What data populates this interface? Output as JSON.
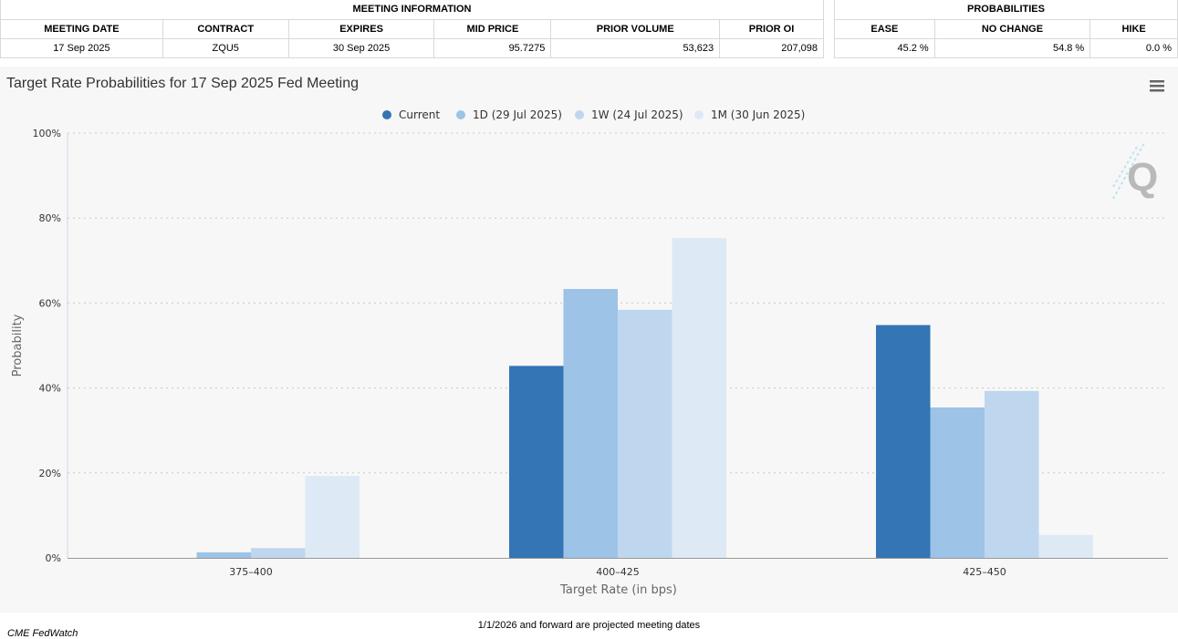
{
  "meeting_info": {
    "header": "MEETING INFORMATION",
    "columns": [
      "MEETING DATE",
      "CONTRACT",
      "EXPIRES",
      "MID PRICE",
      "PRIOR VOLUME",
      "PRIOR OI"
    ],
    "row": [
      "17 Sep 2025",
      "ZQU5",
      "30 Sep 2025",
      "95.7275",
      "53,623",
      "207,098"
    ]
  },
  "probabilities": {
    "header": "PROBABILITIES",
    "columns": [
      "EASE",
      "NO CHANGE",
      "HIKE"
    ],
    "row": [
      "45.2 %",
      "54.8 %",
      "0.0 %"
    ]
  },
  "menu_icon": "hamburger-menu-icon",
  "watermark": "Q",
  "footer": {
    "note": "1/1/2026 and forward are projected meeting dates",
    "source": "CME FedWatch"
  },
  "chart_data": {
    "type": "bar",
    "title": "Target Rate Probabilities for 17 Sep 2025 Fed Meeting",
    "xlabel": "Target Rate (in bps)",
    "ylabel": "Probability",
    "categories": [
      "375-400",
      "400-425",
      "425-450"
    ],
    "ylim": [
      0,
      100
    ],
    "yticks": [
      "0%",
      "20%",
      "40%",
      "60%",
      "80%",
      "100%"
    ],
    "grid": true,
    "legend_position": "top-center",
    "series": [
      {
        "name": "Current",
        "color": "#3375b5",
        "values": [
          0.0,
          45.2,
          54.8
        ]
      },
      {
        "name": "1D (29 Jul 2025)",
        "color": "#9dc3e6",
        "values": [
          1.3,
          63.3,
          35.4
        ]
      },
      {
        "name": "1W (24 Jul 2025)",
        "color": "#bfd7ee",
        "values": [
          2.3,
          58.4,
          39.3
        ]
      },
      {
        "name": "1M (30 Jun 2025)",
        "color": "#ddeaf6",
        "values": [
          19.3,
          75.3,
          5.4
        ]
      }
    ]
  }
}
